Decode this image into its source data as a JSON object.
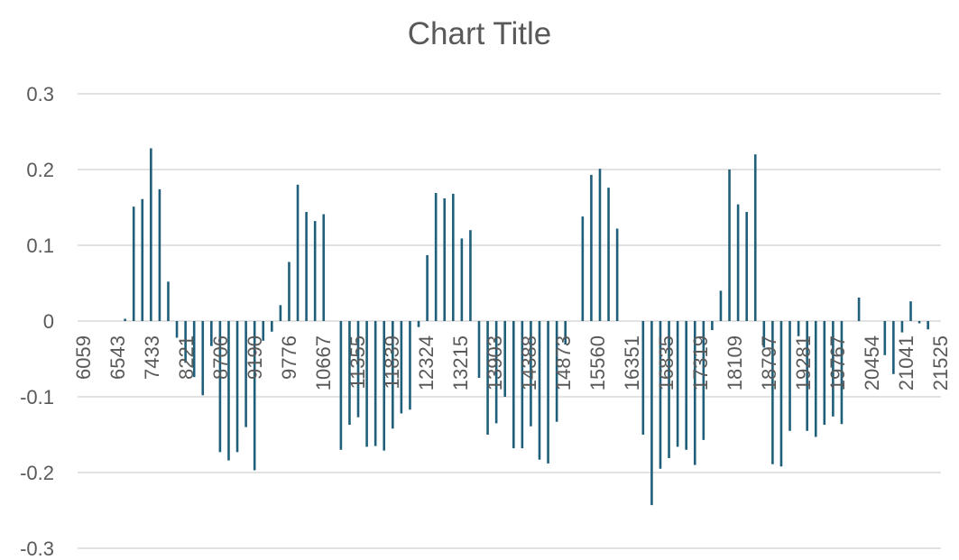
{
  "chart_data": {
    "type": "bar",
    "title": "Chart Title",
    "xlabel": "",
    "ylabel": "",
    "ylim": [
      -0.3,
      0.3
    ],
    "y_ticks": [
      "-0.3",
      "-0.2",
      "-0.1",
      "0",
      "0.1",
      "0.2",
      "0.3"
    ],
    "x_tick_labels": [
      "6059",
      "6543",
      "7433",
      "8221",
      "8706",
      "9190",
      "9776",
      "10667",
      "11355",
      "11839",
      "12324",
      "13215",
      "13903",
      "14388",
      "14873",
      "15560",
      "16351",
      "16835",
      "17319",
      "18109",
      "18797",
      "19281",
      "19767",
      "20454",
      "21041",
      "21525"
    ],
    "grid": true,
    "legend": "none",
    "color": "#1f5f7a",
    "values": [
      0,
      0,
      0,
      0,
      0,
      0.003,
      0.151,
      0.161,
      0.228,
      0.174,
      0.052,
      -0.022,
      -0.055,
      -0.074,
      -0.098,
      -0.033,
      -0.173,
      -0.184,
      -0.173,
      -0.14,
      -0.197,
      -0.026,
      -0.014,
      0.021,
      0.078,
      0.18,
      0.144,
      0.132,
      0.141,
      0,
      -0.17,
      -0.137,
      -0.127,
      -0.166,
      -0.165,
      -0.171,
      -0.142,
      -0.122,
      -0.117,
      -0.008,
      0.087,
      0.169,
      0.162,
      0.168,
      0.109,
      0.12,
      -0.075,
      -0.15,
      -0.135,
      -0.1,
      -0.168,
      -0.168,
      -0.139,
      -0.183,
      -0.188,
      -0.133,
      -0.031,
      0,
      0.138,
      0.193,
      0.201,
      0.176,
      0.122,
      0,
      0,
      -0.15,
      -0.243,
      -0.195,
      -0.181,
      -0.166,
      -0.17,
      -0.19,
      -0.157,
      -0.012,
      0.04,
      0.2,
      0.154,
      0.144,
      0.22,
      -0.035,
      -0.189,
      -0.192,
      -0.145,
      -0.02,
      -0.145,
      -0.153,
      -0.137,
      -0.126,
      -0.136,
      0,
      0.031,
      0,
      0,
      -0.045,
      -0.07,
      -0.015,
      0.026,
      -0.003,
      -0.011,
      0
    ]
  }
}
